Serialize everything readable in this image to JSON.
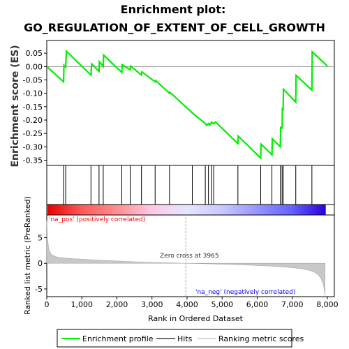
{
  "chart_data": {
    "type": "line",
    "title_line1": "Enrichment plot:",
    "title_line2": "GO_REGULATION_OF_EXTENT_OF_CELL_GROWTH",
    "es_panel": {
      "ylabel": "Enrichment score (ES)",
      "ylim": [
        -0.35,
        0.07
      ],
      "yticks": [
        0.05,
        0.0,
        -0.05,
        -0.1,
        -0.15,
        -0.2,
        -0.25,
        -0.3,
        -0.35
      ],
      "ytick_labels": [
        "0.05",
        "0.00",
        "-0.05",
        "-0.10",
        "-0.15",
        "-0.20",
        "-0.25",
        "-0.30",
        "-0.35"
      ],
      "series": [
        {
          "name": "Enrichment profile",
          "color": "#00ee00",
          "x": [
            0,
            480,
            490,
            540,
            560,
            1260,
            1280,
            1490,
            1500,
            1610,
            1620,
            2140,
            2150,
            2380,
            2390,
            2700,
            2710,
            3090,
            3100,
            3500,
            3510,
            4150,
            4520,
            4560,
            4610,
            4650,
            4700,
            4760,
            4810,
            5450,
            5460,
            6100,
            6110,
            6420,
            6430,
            6660,
            6670,
            6710,
            6720,
            6740,
            6750,
            7100,
            7110,
            7560,
            7570,
            8000
          ],
          "y": [
            0.0,
            -0.057,
            0.005,
            -0.002,
            0.057,
            -0.032,
            0.01,
            -0.018,
            0.018,
            0.001,
            0.043,
            -0.022,
            0.007,
            -0.012,
            0.002,
            -0.032,
            -0.02,
            -0.057,
            -0.052,
            -0.1,
            -0.096,
            -0.173,
            -0.213,
            -0.22,
            -0.213,
            -0.218,
            -0.208,
            -0.214,
            -0.207,
            -0.288,
            -0.26,
            -0.342,
            -0.29,
            -0.33,
            -0.27,
            -0.3,
            -0.228,
            -0.23,
            -0.158,
            -0.16,
            -0.085,
            -0.133,
            -0.033,
            -0.088,
            0.055,
            0.002
          ]
        }
      ]
    },
    "hits": [
      480,
      540,
      1260,
      1490,
      1610,
      2140,
      2380,
      2700,
      3090,
      3500,
      4150,
      4520,
      4610,
      4700,
      4760,
      5450,
      6100,
      6420,
      6660,
      6710,
      6740,
      7100,
      7560
    ],
    "metric_panel": {
      "ylabel": "Ranked list metric (PreRanked)",
      "xlabel": "Rank in Ordered Dataset",
      "xlim": [
        0,
        8200
      ],
      "ylim": [
        -6.5,
        9.0
      ],
      "xticks": [
        0,
        1000,
        2000,
        3000,
        4000,
        5000,
        6000,
        7000,
        8000
      ],
      "xtick_labels": [
        "0",
        "1,000",
        "2,000",
        "3,000",
        "4,000",
        "5,000",
        "6,000",
        "7,000",
        "8,000"
      ],
      "yticks": [
        5,
        0,
        -5
      ],
      "ytick_labels": [
        "5",
        "0",
        "-5"
      ],
      "series": [
        {
          "name": "Ranking metric scores",
          "color": "#c8c8c8",
          "x": [
            0,
            20,
            60,
            150,
            300,
            600,
            1000,
            1500,
            2000,
            2500,
            3000,
            3500,
            3965,
            4500,
            5000,
            5500,
            6000,
            6500,
            7000,
            7300,
            7500,
            7650,
            7750,
            7820,
            7870,
            7900,
            7920,
            7935
          ],
          "y": [
            8.3,
            5.0,
            2.6,
            1.6,
            1.2,
            0.95,
            0.8,
            0.6,
            0.45,
            0.3,
            0.18,
            0.08,
            0.0,
            -0.08,
            -0.17,
            -0.28,
            -0.42,
            -0.6,
            -0.85,
            -1.1,
            -1.4,
            -1.8,
            -2.3,
            -3.0,
            -3.8,
            -4.6,
            -5.5,
            -6.3
          ]
        }
      ],
      "zero_cross_label": "Zero cross at 3965",
      "zero_cross_x": 3965,
      "pos_label": "'na_pos' (positively correlated)",
      "neg_label": "'na_neg' (negatively correlated)"
    },
    "colors": {
      "profile": "#00ee00",
      "hits": "#000000",
      "metric": "#c8c8c8",
      "pos_text": "#ff0000",
      "neg_text": "#0000ff",
      "gradient": [
        "#e60000",
        "#ff5a5a",
        "#ff8f8f",
        "#ffc8e6",
        "#e6e6ff",
        "#c8c8ff",
        "#9696ff",
        "#6464ff",
        "#2a00dc"
      ]
    },
    "legend": {
      "items": [
        "Enrichment profile",
        "Hits",
        "Ranking metric scores"
      ],
      "colors": [
        "#00ee00",
        "#707070",
        "#d8d8d8"
      ],
      "placement": "bottom"
    }
  }
}
